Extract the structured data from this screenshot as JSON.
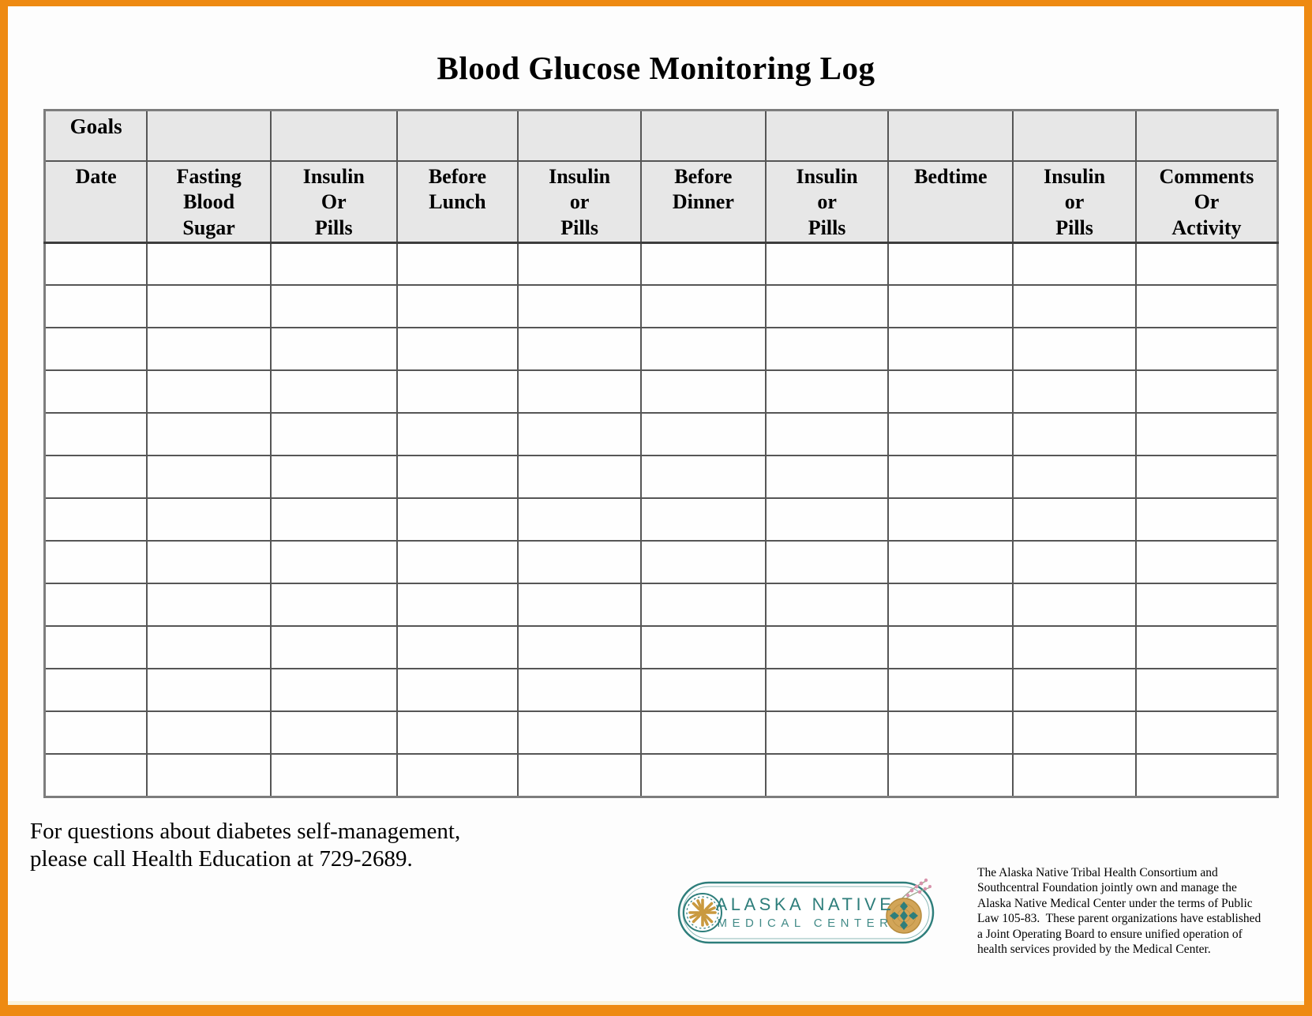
{
  "page": {
    "title": "Blood Glucose Monitoring Log",
    "border_color": "#EE8A12"
  },
  "table": {
    "goals_label": "Goals",
    "empty_row_count": 13,
    "columns": [
      {
        "label": "Date"
      },
      {
        "label": "Fasting\nBlood\nSugar"
      },
      {
        "label": "Insulin\nOr\nPills"
      },
      {
        "label": "Before\nLunch"
      },
      {
        "label": "Insulin\nor\nPills"
      },
      {
        "label": "Before\nDinner"
      },
      {
        "label": "Insulin\nor\nPills"
      },
      {
        "label": "Bedtime"
      },
      {
        "label": "Insulin\nor\nPills"
      },
      {
        "label": "Comments\nOr\nActivity"
      }
    ]
  },
  "footer": {
    "contact_note": "For questions about diabetes self-management,\nplease call Health Education at 729-2689.",
    "logo": {
      "name_line1": "ALASKA NATIVE",
      "name_line2": "MEDICAL CENTER",
      "teal": "#2E7E7B",
      "gold": "#C9993F",
      "pink": "#D893AC"
    },
    "disclaimer": "The Alaska Native Tribal Health Consortium and\nSouthcentral Foundation jointly own and manage the\nAlaska Native Medical Center under the terms of Public\nLaw 105-83.  These parent organizations have established\na Joint Operating Board to ensure unified operation of\nhealth services provided by the Medical Center."
  }
}
